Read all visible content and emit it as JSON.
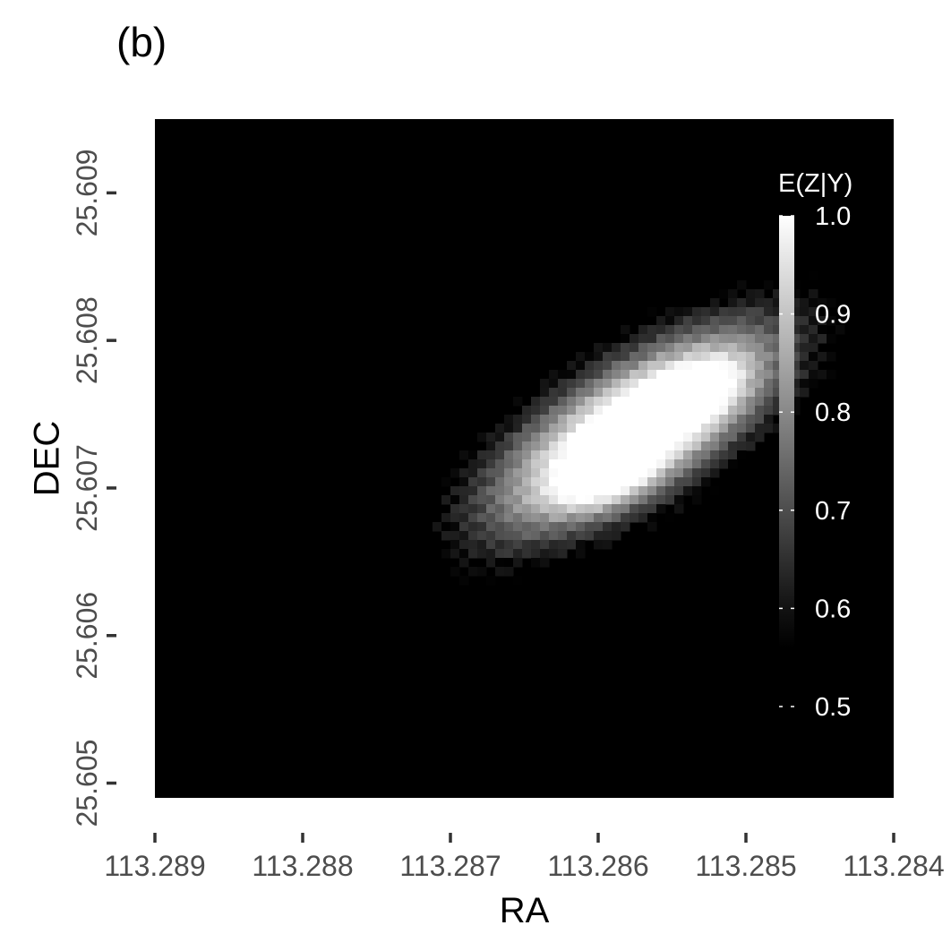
{
  "panel_label": "(b)",
  "chart_data": {
    "type": "heatmap",
    "xlabel": "RA",
    "ylabel": "DEC",
    "x_axis_reversed": true,
    "xlim": [
      113.289,
      113.284
    ],
    "ylim": [
      25.6049,
      25.6095
    ],
    "x_ticks": [
      "113.289",
      "113.288",
      "113.287",
      "113.286",
      "113.285",
      "113.284"
    ],
    "y_ticks": [
      "25.605",
      "25.606",
      "25.607",
      "25.608",
      "25.609"
    ],
    "colorscale": {
      "low": "#000000",
      "high": "#ffffff",
      "range": [
        0.56,
        1.0
      ]
    },
    "background_value": 0.5,
    "grid": false,
    "legend": {
      "title": "E(Z|Y)",
      "position": "inside top-right",
      "ticks": [
        "1.0",
        "0.9",
        "0.8",
        "0.7",
        "0.6",
        "0.5"
      ]
    },
    "blobs": [
      {
        "ra": 113.28575,
        "dec": 25.6074,
        "peak": 0.72,
        "sigma_ra": 0.00072,
        "sigma_dec": 0.00028,
        "angle_deg": 32
      },
      {
        "ra": 113.28592,
        "dec": 25.60705,
        "peak": 0.2,
        "sigma_ra": 0.00024,
        "sigma_dec": 0.00012,
        "angle_deg": 20
      },
      {
        "ra": 113.28536,
        "dec": 25.60762,
        "peak": 0.22,
        "sigma_ra": 0.00026,
        "sigma_dec": 0.00013,
        "angle_deg": 30
      }
    ]
  }
}
